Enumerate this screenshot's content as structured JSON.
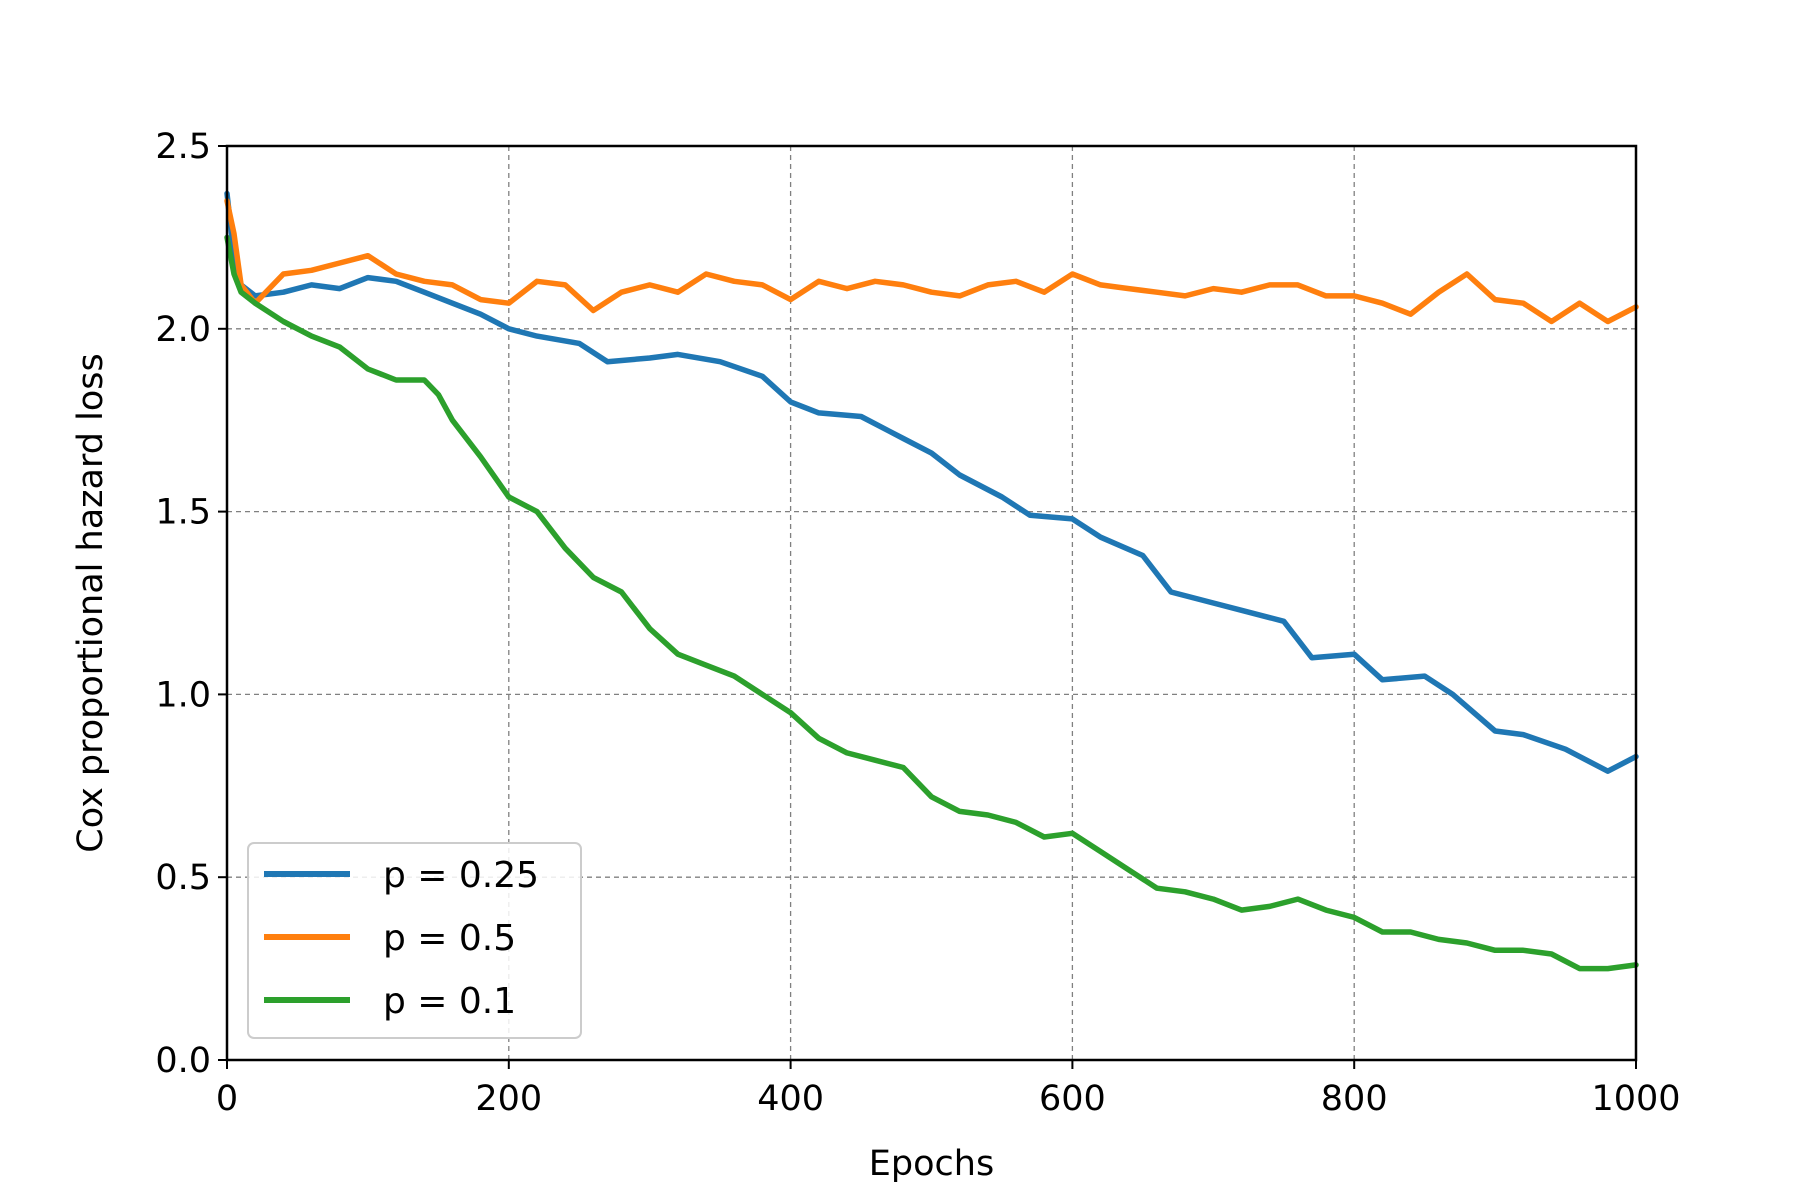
{
  "chart_data": {
    "type": "line",
    "title": "",
    "xlabel": "Epochs",
    "ylabel": "Cox proportional hazard loss",
    "xlim": [
      0,
      1000
    ],
    "ylim": [
      0,
      2.5
    ],
    "xticks": [
      "0",
      "200",
      "400",
      "600",
      "800",
      "1000"
    ],
    "yticks": [
      "0.0",
      "0.5",
      "1.0",
      "1.5",
      "2.0",
      "2.5"
    ],
    "grid": true,
    "legend_position": "lower-left",
    "series": [
      {
        "name": "p = 0.25",
        "color": "#1f77b4",
        "x": [
          0,
          5,
          10,
          20,
          40,
          60,
          80,
          100,
          120,
          140,
          160,
          180,
          200,
          220,
          250,
          270,
          300,
          320,
          350,
          380,
          400,
          420,
          450,
          480,
          500,
          520,
          550,
          570,
          600,
          620,
          650,
          670,
          700,
          720,
          750,
          770,
          800,
          820,
          850,
          870,
          900,
          920,
          950,
          980,
          1000
        ],
        "y": [
          2.37,
          2.2,
          2.12,
          2.09,
          2.1,
          2.12,
          2.11,
          2.14,
          2.13,
          2.1,
          2.07,
          2.04,
          2.0,
          1.98,
          1.96,
          1.91,
          1.92,
          1.93,
          1.91,
          1.87,
          1.8,
          1.77,
          1.76,
          1.7,
          1.66,
          1.6,
          1.54,
          1.49,
          1.48,
          1.43,
          1.38,
          1.28,
          1.25,
          1.23,
          1.2,
          1.1,
          1.11,
          1.04,
          1.05,
          1.0,
          0.9,
          0.89,
          0.85,
          0.79,
          0.83
        ]
      },
      {
        "name": "p = 0.5",
        "color": "#ff7f0e",
        "x": [
          0,
          5,
          10,
          20,
          40,
          60,
          80,
          100,
          120,
          140,
          160,
          180,
          200,
          220,
          240,
          260,
          280,
          300,
          320,
          340,
          360,
          380,
          400,
          420,
          440,
          460,
          480,
          500,
          520,
          540,
          560,
          580,
          600,
          620,
          640,
          660,
          680,
          700,
          720,
          740,
          760,
          780,
          800,
          820,
          840,
          860,
          880,
          900,
          920,
          940,
          960,
          980,
          1000
        ],
        "y": [
          2.35,
          2.26,
          2.12,
          2.07,
          2.15,
          2.16,
          2.18,
          2.2,
          2.15,
          2.13,
          2.12,
          2.08,
          2.07,
          2.13,
          2.12,
          2.05,
          2.1,
          2.12,
          2.1,
          2.15,
          2.13,
          2.12,
          2.08,
          2.13,
          2.11,
          2.13,
          2.12,
          2.1,
          2.09,
          2.12,
          2.13,
          2.1,
          2.15,
          2.12,
          2.11,
          2.1,
          2.09,
          2.11,
          2.1,
          2.12,
          2.12,
          2.09,
          2.09,
          2.07,
          2.04,
          2.1,
          2.15,
          2.08,
          2.07,
          2.02,
          2.07,
          2.02,
          2.06
        ]
      },
      {
        "name": "p = 0.1",
        "color": "#2ca02c",
        "x": [
          0,
          5,
          10,
          20,
          40,
          60,
          80,
          100,
          120,
          140,
          150,
          160,
          180,
          200,
          220,
          240,
          260,
          280,
          300,
          320,
          340,
          360,
          380,
          400,
          420,
          440,
          460,
          480,
          500,
          520,
          540,
          560,
          580,
          600,
          620,
          640,
          660,
          680,
          700,
          720,
          740,
          760,
          780,
          800,
          820,
          840,
          860,
          880,
          900,
          920,
          940,
          960,
          980,
          1000
        ],
        "y": [
          2.25,
          2.15,
          2.1,
          2.07,
          2.02,
          1.98,
          1.95,
          1.89,
          1.86,
          1.86,
          1.82,
          1.75,
          1.65,
          1.54,
          1.5,
          1.4,
          1.32,
          1.28,
          1.18,
          1.11,
          1.08,
          1.05,
          1.0,
          0.95,
          0.88,
          0.84,
          0.82,
          0.8,
          0.72,
          0.68,
          0.67,
          0.65,
          0.61,
          0.62,
          0.57,
          0.52,
          0.47,
          0.46,
          0.44,
          0.41,
          0.42,
          0.44,
          0.41,
          0.39,
          0.35,
          0.35,
          0.33,
          0.32,
          0.3,
          0.3,
          0.29,
          0.25,
          0.25,
          0.26
        ]
      }
    ]
  }
}
